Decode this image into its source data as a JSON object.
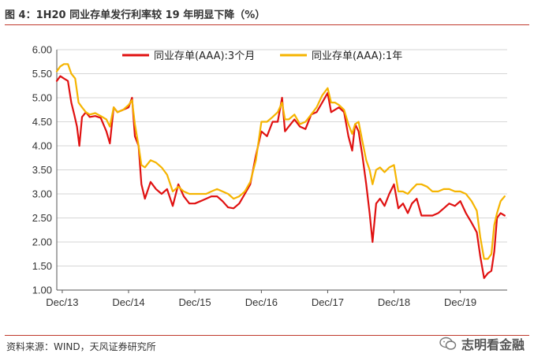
{
  "title": "图 4：1H20 同业存单发行利率较 19 年明显下降（%）",
  "source": "资料来源：WIND，天风证券研究所",
  "watermark": "志明看金融",
  "chart_data": {
    "type": "line",
    "title": "",
    "xlabel": "",
    "ylabel": "",
    "ylim": [
      1.0,
      6.0
    ],
    "yticks": [
      "1.00",
      "1.50",
      "2.00",
      "2.50",
      "3.00",
      "3.50",
      "4.00",
      "4.50",
      "5.00",
      "5.50",
      "6.00"
    ],
    "xlim": [
      "2013-11-01",
      "2020-08-15"
    ],
    "xticks": [
      {
        "date": "2013-12-01",
        "label": "Dec/13"
      },
      {
        "date": "2014-12-01",
        "label": "Dec/14"
      },
      {
        "date": "2015-12-01",
        "label": "Dec/15"
      },
      {
        "date": "2016-12-01",
        "label": "Dec/16"
      },
      {
        "date": "2017-12-01",
        "label": "Dec/17"
      },
      {
        "date": "2018-12-01",
        "label": "Dec/18"
      },
      {
        "date": "2019-12-01",
        "label": "Dec/19"
      }
    ],
    "grid": true,
    "legend_position": "top",
    "series": [
      {
        "name": "同业存单(AAA):3个月",
        "color": "#e01010",
        "points": [
          [
            "2013-11-01",
            5.35
          ],
          [
            "2013-11-20",
            5.45
          ],
          [
            "2013-12-10",
            5.4
          ],
          [
            "2014-01-01",
            5.35
          ],
          [
            "2014-01-20",
            4.9
          ],
          [
            "2014-02-05",
            4.65
          ],
          [
            "2014-02-20",
            4.4
          ],
          [
            "2014-03-05",
            4.0
          ],
          [
            "2014-03-20",
            4.6
          ],
          [
            "2014-04-10",
            4.7
          ],
          [
            "2014-05-01",
            4.6
          ],
          [
            "2014-06-01",
            4.62
          ],
          [
            "2014-07-01",
            4.58
          ],
          [
            "2014-08-01",
            4.3
          ],
          [
            "2014-08-20",
            4.05
          ],
          [
            "2014-09-10",
            4.8
          ],
          [
            "2014-10-01",
            4.7
          ],
          [
            "2014-11-01",
            4.75
          ],
          [
            "2014-12-01",
            4.8
          ],
          [
            "2014-12-20",
            5.0
          ],
          [
            "2015-01-05",
            4.2
          ],
          [
            "2015-01-25",
            4.0
          ],
          [
            "2015-02-10",
            3.2
          ],
          [
            "2015-03-01",
            2.9
          ],
          [
            "2015-04-01",
            3.25
          ],
          [
            "2015-05-01",
            3.1
          ],
          [
            "2015-06-01",
            3.0
          ],
          [
            "2015-07-01",
            3.1
          ],
          [
            "2015-08-01",
            2.75
          ],
          [
            "2015-09-01",
            3.2
          ],
          [
            "2015-10-01",
            2.95
          ],
          [
            "2015-11-01",
            2.8
          ],
          [
            "2015-12-01",
            2.8
          ],
          [
            "2016-01-01",
            2.85
          ],
          [
            "2016-02-01",
            2.9
          ],
          [
            "2016-03-01",
            2.95
          ],
          [
            "2016-04-01",
            2.95
          ],
          [
            "2016-05-01",
            2.85
          ],
          [
            "2016-06-01",
            2.72
          ],
          [
            "2016-07-01",
            2.7
          ],
          [
            "2016-08-01",
            2.8
          ],
          [
            "2016-09-01",
            3.0
          ],
          [
            "2016-10-01",
            3.2
          ],
          [
            "2016-11-01",
            3.8
          ],
          [
            "2016-12-01",
            4.3
          ],
          [
            "2017-01-01",
            4.2
          ],
          [
            "2017-02-01",
            4.5
          ],
          [
            "2017-03-01",
            4.5
          ],
          [
            "2017-03-25",
            5.0
          ],
          [
            "2017-04-10",
            4.3
          ],
          [
            "2017-05-01",
            4.4
          ],
          [
            "2017-06-01",
            4.55
          ],
          [
            "2017-07-01",
            4.4
          ],
          [
            "2017-08-01",
            4.35
          ],
          [
            "2017-09-01",
            4.65
          ],
          [
            "2017-10-01",
            4.7
          ],
          [
            "2017-11-01",
            4.9
          ],
          [
            "2017-12-01",
            5.1
          ],
          [
            "2017-12-20",
            4.7
          ],
          [
            "2018-01-10",
            4.75
          ],
          [
            "2018-02-01",
            4.8
          ],
          [
            "2018-03-01",
            4.7
          ],
          [
            "2018-03-25",
            4.2
          ],
          [
            "2018-04-15",
            3.9
          ],
          [
            "2018-05-01",
            4.45
          ],
          [
            "2018-05-20",
            4.3
          ],
          [
            "2018-06-10",
            3.8
          ],
          [
            "2018-07-01",
            3.2
          ],
          [
            "2018-07-20",
            2.6
          ],
          [
            "2018-08-05",
            2.0
          ],
          [
            "2018-08-25",
            2.8
          ],
          [
            "2018-09-15",
            2.9
          ],
          [
            "2018-10-10",
            2.75
          ],
          [
            "2018-11-05",
            3.0
          ],
          [
            "2018-12-01",
            3.2
          ],
          [
            "2018-12-25",
            2.7
          ],
          [
            "2019-01-20",
            2.8
          ],
          [
            "2019-02-15",
            2.6
          ],
          [
            "2019-03-10",
            2.8
          ],
          [
            "2019-04-05",
            2.9
          ],
          [
            "2019-05-01",
            2.55
          ],
          [
            "2019-06-01",
            2.55
          ],
          [
            "2019-07-01",
            2.55
          ],
          [
            "2019-08-01",
            2.6
          ],
          [
            "2019-09-01",
            2.7
          ],
          [
            "2019-10-01",
            2.8
          ],
          [
            "2019-11-01",
            2.75
          ],
          [
            "2019-12-01",
            2.85
          ],
          [
            "2020-01-01",
            2.6
          ],
          [
            "2020-02-01",
            2.4
          ],
          [
            "2020-03-01",
            2.2
          ],
          [
            "2020-03-20",
            1.7
          ],
          [
            "2020-04-10",
            1.25
          ],
          [
            "2020-05-01",
            1.35
          ],
          [
            "2020-05-20",
            1.4
          ],
          [
            "2020-06-05",
            1.8
          ],
          [
            "2020-06-20",
            2.5
          ],
          [
            "2020-07-10",
            2.6
          ],
          [
            "2020-08-01",
            2.55
          ]
        ]
      },
      {
        "name": "同业存单(AAA):1年",
        "color": "#f5b400",
        "points": [
          [
            "2013-11-01",
            5.55
          ],
          [
            "2013-11-20",
            5.65
          ],
          [
            "2013-12-10",
            5.7
          ],
          [
            "2014-01-01",
            5.7
          ],
          [
            "2014-01-20",
            5.5
          ],
          [
            "2014-02-10",
            5.4
          ],
          [
            "2014-03-01",
            4.9
          ],
          [
            "2014-03-20",
            4.8
          ],
          [
            "2014-04-10",
            4.7
          ],
          [
            "2014-05-01",
            4.65
          ],
          [
            "2014-06-01",
            4.68
          ],
          [
            "2014-07-01",
            4.62
          ],
          [
            "2014-08-01",
            4.55
          ],
          [
            "2014-08-20",
            4.4
          ],
          [
            "2014-09-10",
            4.8
          ],
          [
            "2014-10-01",
            4.7
          ],
          [
            "2014-11-01",
            4.75
          ],
          [
            "2014-12-01",
            4.85
          ],
          [
            "2014-12-20",
            4.95
          ],
          [
            "2015-01-05",
            4.45
          ],
          [
            "2015-01-25",
            4.0
          ],
          [
            "2015-02-10",
            3.6
          ],
          [
            "2015-03-01",
            3.55
          ],
          [
            "2015-04-01",
            3.7
          ],
          [
            "2015-05-01",
            3.65
          ],
          [
            "2015-06-01",
            3.55
          ],
          [
            "2015-07-01",
            3.4
          ],
          [
            "2015-08-01",
            3.05
          ],
          [
            "2015-09-01",
            3.15
          ],
          [
            "2015-10-01",
            3.05
          ],
          [
            "2015-11-01",
            3.0
          ],
          [
            "2015-12-01",
            3.0
          ],
          [
            "2016-01-01",
            3.0
          ],
          [
            "2016-02-01",
            3.0
          ],
          [
            "2016-03-01",
            3.05
          ],
          [
            "2016-04-01",
            3.1
          ],
          [
            "2016-05-01",
            3.05
          ],
          [
            "2016-06-01",
            3.0
          ],
          [
            "2016-07-01",
            2.9
          ],
          [
            "2016-08-01",
            2.95
          ],
          [
            "2016-09-01",
            3.05
          ],
          [
            "2016-10-01",
            3.25
          ],
          [
            "2016-11-01",
            3.7
          ],
          [
            "2016-12-01",
            4.5
          ],
          [
            "2017-01-01",
            4.5
          ],
          [
            "2017-02-01",
            4.6
          ],
          [
            "2017-03-01",
            4.7
          ],
          [
            "2017-03-25",
            4.9
          ],
          [
            "2017-04-10",
            4.55
          ],
          [
            "2017-05-01",
            4.55
          ],
          [
            "2017-06-01",
            4.65
          ],
          [
            "2017-07-01",
            4.45
          ],
          [
            "2017-08-01",
            4.5
          ],
          [
            "2017-09-01",
            4.65
          ],
          [
            "2017-10-01",
            4.8
          ],
          [
            "2017-11-01",
            5.05
          ],
          [
            "2017-12-01",
            5.2
          ],
          [
            "2017-12-20",
            4.9
          ],
          [
            "2018-01-10",
            4.9
          ],
          [
            "2018-02-01",
            4.85
          ],
          [
            "2018-03-01",
            4.75
          ],
          [
            "2018-03-25",
            4.45
          ],
          [
            "2018-04-15",
            4.25
          ],
          [
            "2018-05-01",
            4.45
          ],
          [
            "2018-05-20",
            4.5
          ],
          [
            "2018-06-10",
            4.1
          ],
          [
            "2018-07-01",
            3.7
          ],
          [
            "2018-07-20",
            3.5
          ],
          [
            "2018-08-05",
            3.2
          ],
          [
            "2018-08-25",
            3.5
          ],
          [
            "2018-09-15",
            3.55
          ],
          [
            "2018-10-10",
            3.45
          ],
          [
            "2018-11-05",
            3.55
          ],
          [
            "2018-12-01",
            3.6
          ],
          [
            "2018-12-25",
            3.05
          ],
          [
            "2019-01-20",
            3.05
          ],
          [
            "2019-02-15",
            3.0
          ],
          [
            "2019-03-10",
            3.1
          ],
          [
            "2019-04-05",
            3.2
          ],
          [
            "2019-05-01",
            3.2
          ],
          [
            "2019-06-01",
            3.15
          ],
          [
            "2019-07-01",
            3.05
          ],
          [
            "2019-08-01",
            3.05
          ],
          [
            "2019-09-01",
            3.1
          ],
          [
            "2019-10-01",
            3.1
          ],
          [
            "2019-11-01",
            3.05
          ],
          [
            "2019-12-01",
            3.05
          ],
          [
            "2020-01-01",
            3.0
          ],
          [
            "2020-02-01",
            2.85
          ],
          [
            "2020-03-01",
            2.65
          ],
          [
            "2020-03-20",
            2.1
          ],
          [
            "2020-04-10",
            1.65
          ],
          [
            "2020-05-01",
            1.65
          ],
          [
            "2020-05-20",
            1.75
          ],
          [
            "2020-06-05",
            2.35
          ],
          [
            "2020-06-20",
            2.6
          ],
          [
            "2020-07-10",
            2.85
          ],
          [
            "2020-08-01",
            2.95
          ]
        ]
      }
    ]
  }
}
